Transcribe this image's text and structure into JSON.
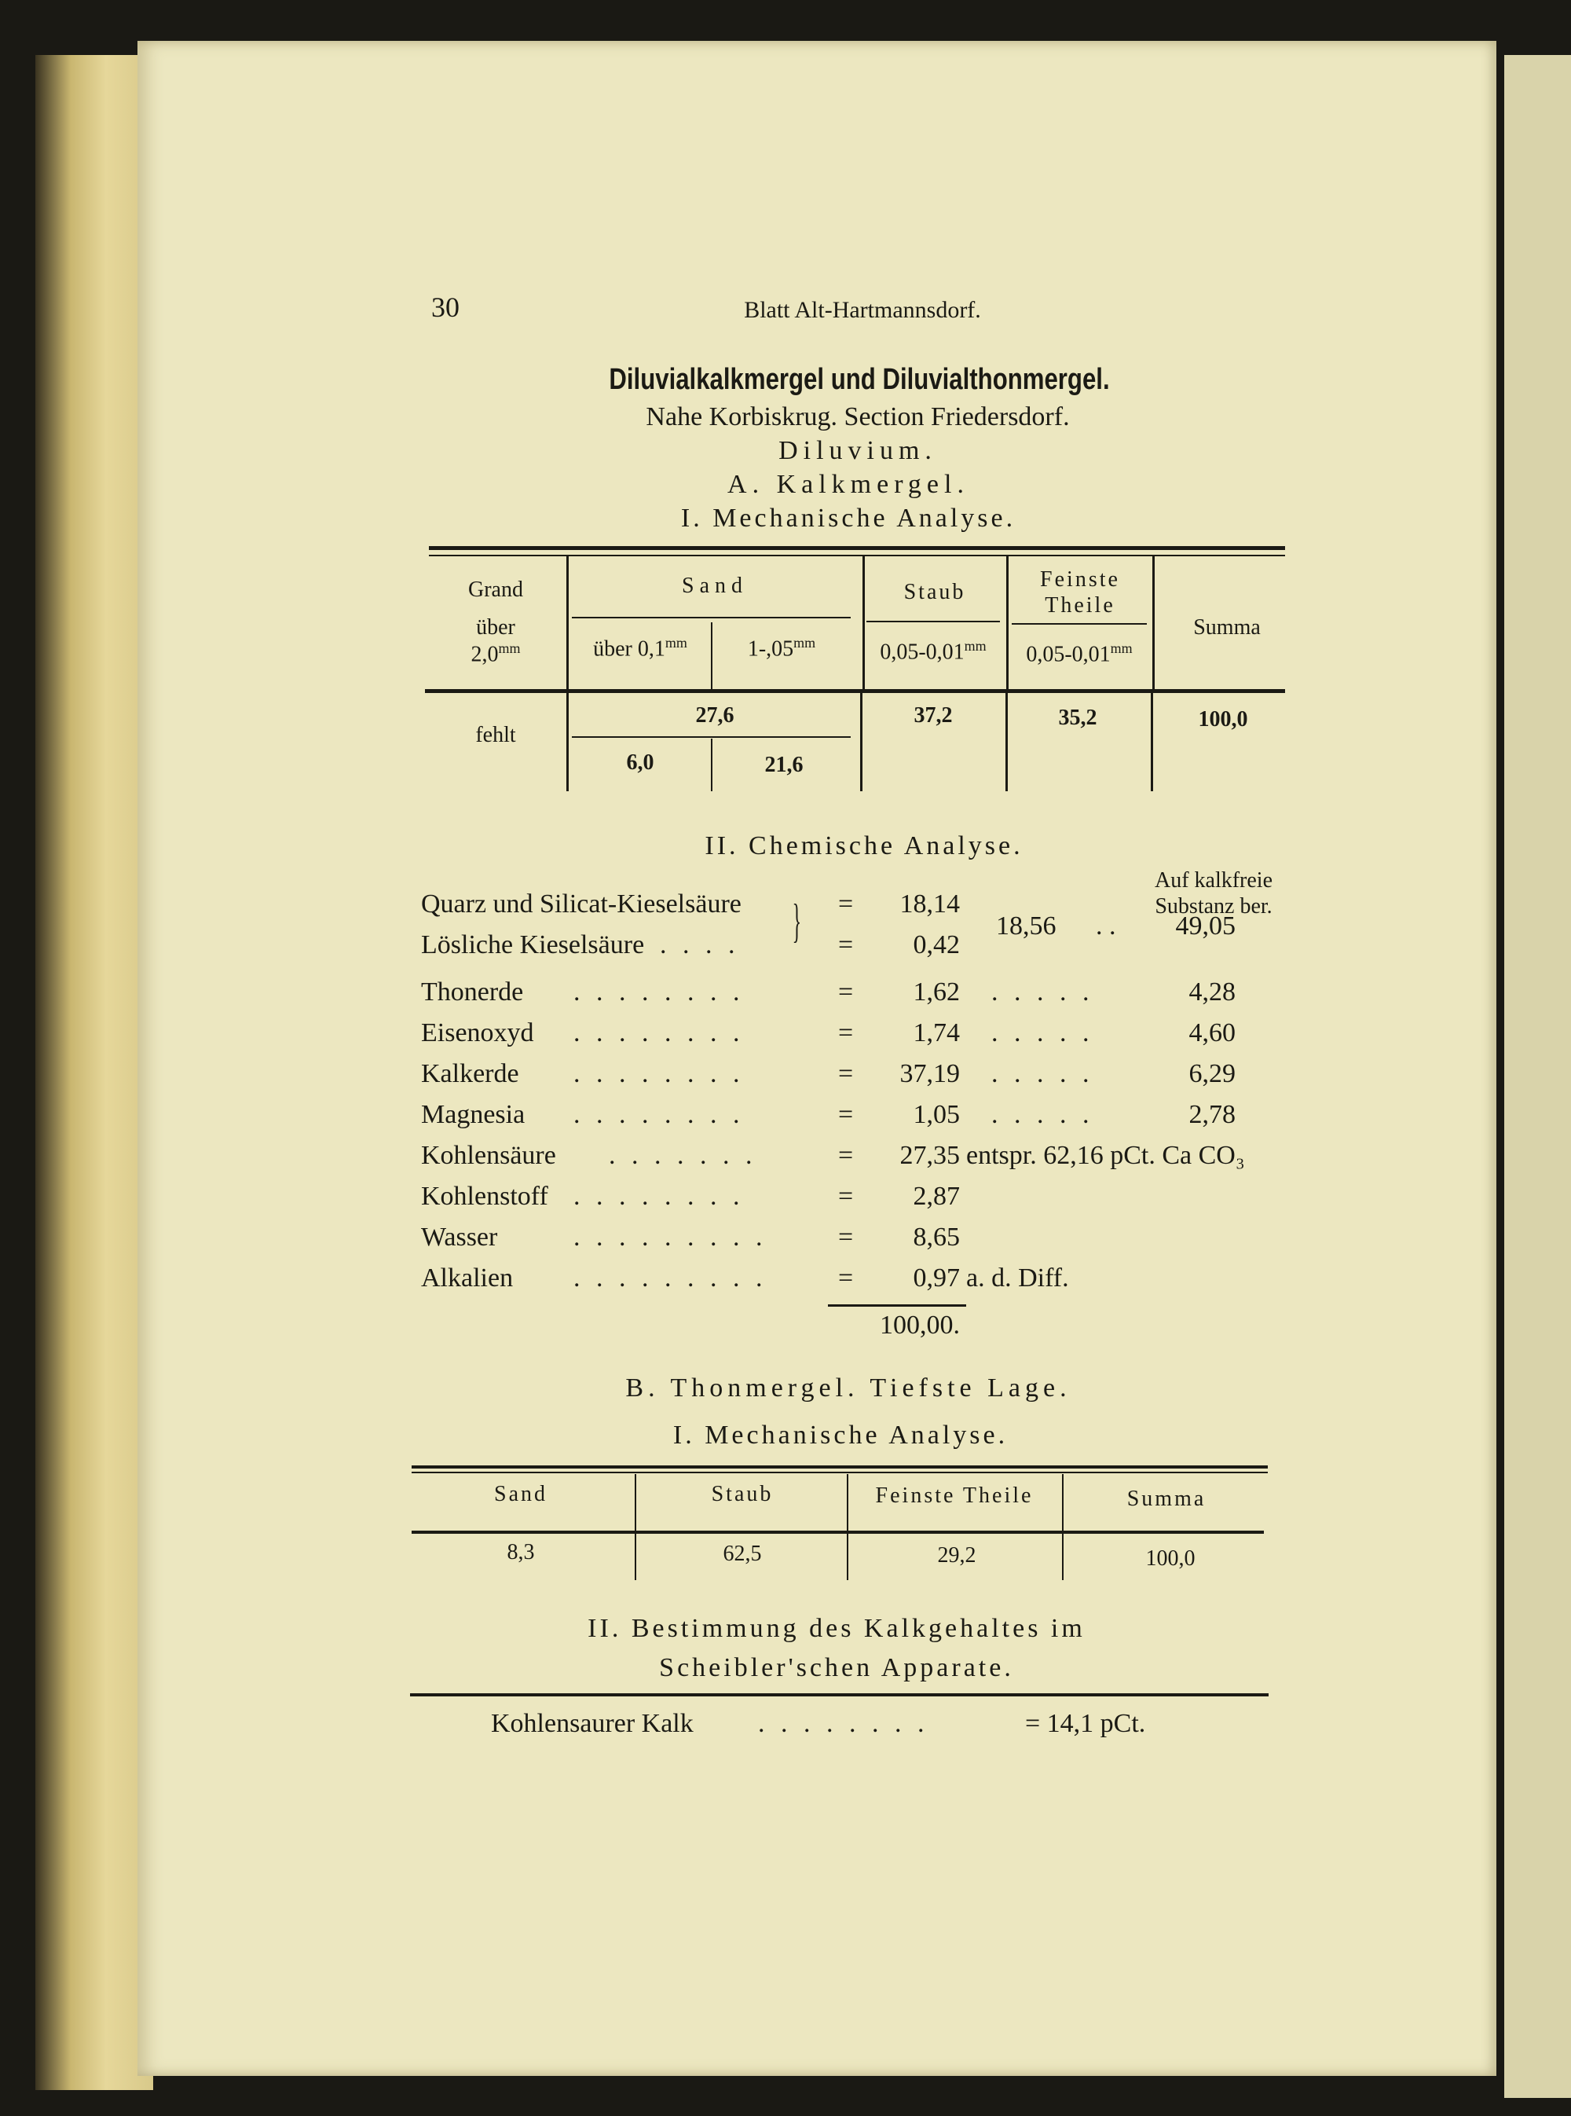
{
  "page_number": "30",
  "running_header": "Blatt Alt-Hartmannsdorf.",
  "title": "Diluvialkalkmergel und Diluvialthonmergel.",
  "location": "Nahe Korbiskrug.  Section Friedersdorf.",
  "formation": "Diluvium.",
  "section_a": {
    "heading": "A. Kalkmergel.",
    "mech_heading": "I. Mechanische Analyse.",
    "table": {
      "grand": "Grand",
      "grand_sub": "über",
      "grand_size": "2,0",
      "sand": "Sand",
      "sand_sub1": "über 0,1",
      "sand_sub2": "1-,05",
      "staub": "Staub",
      "staub_size": "0,05-0,01",
      "feinste1": "Feinste",
      "feinste2": "Theile",
      "feinste_size": "0,05-0,01",
      "summa": "Summa",
      "unit": "mm",
      "grand_value": "fehlt",
      "sand_total": "27,6",
      "sand_1": "6,0",
      "sand_2": "21,6",
      "staub_value": "37,2",
      "feinste_value": "35,2",
      "summa_value": "100,0"
    },
    "chem_heading": "II. Chemische Analyse.",
    "chem_note1": "Auf kalkfreie",
    "chem_note2": "Substanz ber.",
    "chem_rows": [
      {
        "label": "Quarz und Silicat-Kieselsäure",
        "dots": "",
        "value": "18,14",
        "extra": "",
        "calc": ""
      },
      {
        "label": "Lösliche Kieselsäure",
        "dots": ". . . .",
        "value": "0,42",
        "extra": "",
        "calc": ""
      },
      {
        "label": "Thonerde",
        "dots": ". . . . . . . .",
        "value": "1,62",
        "extra": ". . . . .",
        "calc": "4,28"
      },
      {
        "label": "Eisenoxyd",
        "dots": ". . . . . . . .",
        "value": "1,74",
        "extra": ". . . . .",
        "calc": "4,60"
      },
      {
        "label": "Kalkerde",
        "dots": ". . . . . . . .",
        "value": "37,19",
        "extra": ". . . . .",
        "calc": "6,29"
      },
      {
        "label": "Magnesia",
        "dots": ". . . . . . . .",
        "value": "1,05",
        "extra": ". . . . .",
        "calc": "2,78"
      },
      {
        "label": "Kohlensäure",
        "dots": ". . . . . . .",
        "value": "27,35",
        "extra": "entspr. 62,16 pCt. Ca CO₃",
        "calc": ""
      },
      {
        "label": "Kohlenstoff",
        "dots": ". . . . . . . .",
        "value": "2,87",
        "extra": "",
        "calc": ""
      },
      {
        "label": "Wasser",
        "dots": ". . . . . . . . .",
        "value": "8,65",
        "extra": "",
        "calc": ""
      },
      {
        "label": "Alkalien",
        "dots": ". . . . . . . . .",
        "value": "0,97",
        "extra": "a. d. Diff.",
        "calc": ""
      }
    ],
    "equals": "=",
    "silica_sum": "18,56",
    "silica_dots": ". .",
    "silica_calc": "49,05",
    "total": "100,00."
  },
  "section_b": {
    "heading": "B. Thonmergel. Tiefste Lage.",
    "mech_heading": "I. Mechanische Analyse.",
    "table": {
      "headers": [
        "Sand",
        "Staub",
        "Feinste Theile",
        "Summa"
      ],
      "values": [
        "8,3",
        "62,5",
        "29,2",
        "100,0"
      ]
    },
    "lime_heading1": "II. Bestimmung des Kalkgehaltes im",
    "lime_heading2": "Scheibler'schen Apparate.",
    "lime_label": "Kohlensaurer Kalk",
    "lime_dots": ". . . . . . . .",
    "lime_value": "= 14,1 pCt."
  }
}
